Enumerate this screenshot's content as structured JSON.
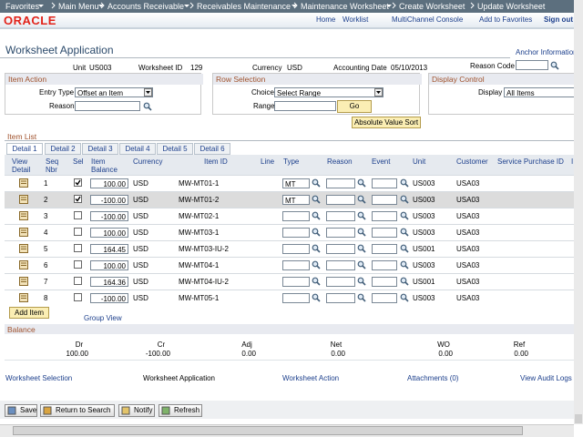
{
  "nav": {
    "items": [
      "Favorites",
      "Main Menu",
      "Accounts Receivable",
      "Receivables Maintenance",
      "Maintenance Worksheet",
      "Create Worksheet",
      "Update Worksheet"
    ]
  },
  "header": {
    "logo": "ORACLE",
    "links": [
      "Home",
      "Worklist",
      "MultiChannel Console",
      "Add to Favorites",
      "Sign out"
    ]
  },
  "page": {
    "title": "Worksheet Application",
    "anchor": "Anchor Information"
  },
  "summary": {
    "unit_label": "Unit",
    "unit": "US003",
    "worksheet_id_label": "Worksheet ID",
    "worksheet_id": "129",
    "currency_label": "Currency",
    "currency": "USD",
    "accounting_date_label": "Accounting Date",
    "accounting_date": "05/10/2013",
    "reason_code_label": "Reason Code"
  },
  "item_action": {
    "title": "Item Action",
    "entry_type_label": "Entry Type",
    "entry_type": "Offset an Item",
    "reason_label": "Reason"
  },
  "row_selection": {
    "title": "Row Selection",
    "choice_label": "Choice",
    "choice": "Select Range",
    "range_label": "Range",
    "go": "Go"
  },
  "display_control": {
    "title": "Display Control",
    "display_label": "Display",
    "display": "All Items"
  },
  "sort_button": "Absolute Value Sort",
  "item_list": {
    "title": "Item List",
    "tabs": [
      "Detail 1",
      "Detail 2",
      "Detail 3",
      "Detail 4",
      "Detail 5",
      "Detail 6"
    ],
    "columns": [
      "View Detail",
      "Seq Nbr",
      "Sel",
      "Item Balance",
      "Currency",
      "Item ID",
      "Line",
      "Type",
      "Reason",
      "Event",
      "Unit",
      "Customer",
      "Service Purchase ID",
      "I"
    ],
    "rows": [
      {
        "seq": "1",
        "selected": true,
        "balance": "100.00",
        "currency": "USD",
        "item_id": "MW-MT01-1",
        "type": "MT",
        "unit": "US003",
        "customer": "USA03"
      },
      {
        "seq": "2",
        "selected": true,
        "balance": "-100.00",
        "currency": "USD",
        "item_id": "MW-MT01-2",
        "type": "MT",
        "unit": "US003",
        "customer": "USA03"
      },
      {
        "seq": "3",
        "selected": false,
        "balance": "-100.00",
        "currency": "USD",
        "item_id": "MW-MT02-1",
        "unit": "US003",
        "customer": "USA03"
      },
      {
        "seq": "4",
        "selected": false,
        "balance": "100.00",
        "currency": "USD",
        "item_id": "MW-MT03-1",
        "unit": "US003",
        "customer": "USA03"
      },
      {
        "seq": "5",
        "selected": false,
        "balance": "164.45",
        "currency": "USD",
        "item_id": "MW-MT03-IU-2",
        "unit": "US001",
        "customer": "USA03"
      },
      {
        "seq": "6",
        "selected": false,
        "balance": "100.00",
        "currency": "USD",
        "item_id": "MW-MT04-1",
        "unit": "US003",
        "customer": "USA03"
      },
      {
        "seq": "7",
        "selected": false,
        "balance": "164.36",
        "currency": "USD",
        "item_id": "MW-MT04-IU-2",
        "unit": "US001",
        "customer": "USA03"
      },
      {
        "seq": "8",
        "selected": false,
        "balance": "-100.00",
        "currency": "USD",
        "item_id": "MW-MT05-1",
        "unit": "US003",
        "customer": "USA03"
      }
    ],
    "add_item": "Add Item",
    "group_view": "Group View"
  },
  "balance": {
    "title": "Balance",
    "items": [
      {
        "label": "Dr",
        "value": "100.00"
      },
      {
        "label": "Cr",
        "value": "-100.00"
      },
      {
        "label": "Adj",
        "value": "0.00"
      },
      {
        "label": "Net",
        "value": "0.00"
      },
      {
        "label": "WO",
        "value": "0.00"
      },
      {
        "label": "Ref",
        "value": "0.00"
      }
    ]
  },
  "links": [
    "Worksheet Selection",
    "Worksheet Application",
    "Worksheet Action",
    "Attachments (0)",
    "View Audit Logs"
  ],
  "toolbar": [
    "Save",
    "Return to Search",
    "Notify",
    "Refresh"
  ]
}
